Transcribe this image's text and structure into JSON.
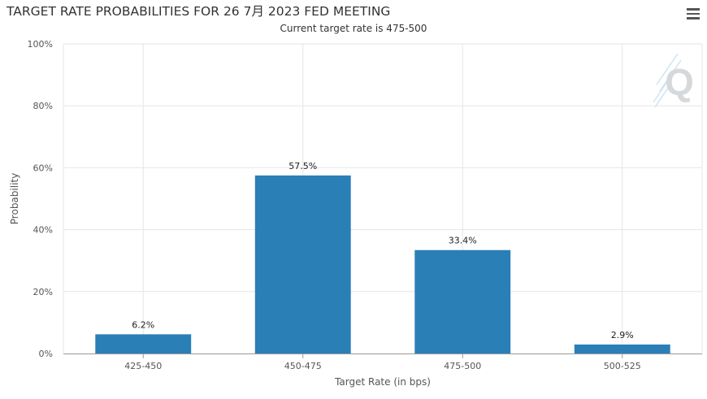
{
  "chart_data": {
    "type": "bar",
    "title": "TARGET RATE PROBABILITIES FOR 26 7月 2023 FED MEETING",
    "subtitle": "Current target rate is 475-500",
    "xlabel": "Target Rate (in bps)",
    "ylabel": "Probability",
    "categories": [
      "425-450",
      "450-475",
      "475-500",
      "500-525"
    ],
    "values": [
      6.2,
      57.5,
      33.4,
      2.9
    ],
    "data_labels": [
      "6.2%",
      "57.5%",
      "33.4%",
      "2.9%"
    ],
    "ylim": [
      0,
      100
    ],
    "y_ticks": [
      0,
      20,
      40,
      60,
      80,
      100
    ],
    "y_tick_labels": [
      "0%",
      "20%",
      "40%",
      "60%",
      "80%",
      "100%"
    ],
    "grid": true,
    "legend": "none",
    "bar_color": "#2a7fb6",
    "watermark": "Q"
  }
}
